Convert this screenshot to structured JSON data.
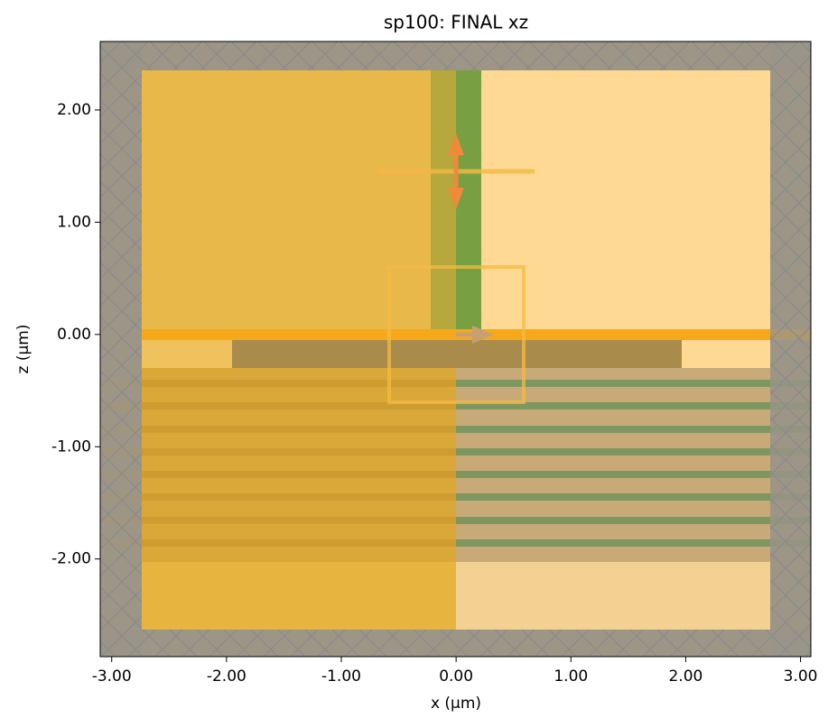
{
  "chart_data": {
    "type": "structure-plot",
    "title": "sp100: FINAL xz",
    "xlabel": "x (µm)",
    "ylabel": "z (µm)",
    "xlim": [
      -3.1,
      3.09
    ],
    "ylim": [
      -2.87,
      2.61
    ],
    "xticks": [
      {
        "value": -3,
        "label": "-3.00"
      },
      {
        "value": -2,
        "label": "-2.00"
      },
      {
        "value": -1,
        "label": "-1.00"
      },
      {
        "value": 0,
        "label": "0.00"
      },
      {
        "value": 1,
        "label": "1.00"
      },
      {
        "value": 2,
        "label": "2.00"
      },
      {
        "value": 3,
        "label": "3.00"
      }
    ],
    "yticks": [
      {
        "value": -2,
        "label": "-2.00"
      },
      {
        "value": -1,
        "label": "-1.00"
      },
      {
        "value": 0,
        "label": "0.00"
      },
      {
        "value": 1,
        "label": "1.00"
      },
      {
        "value": 2,
        "label": "2.00"
      }
    ]
  }
}
